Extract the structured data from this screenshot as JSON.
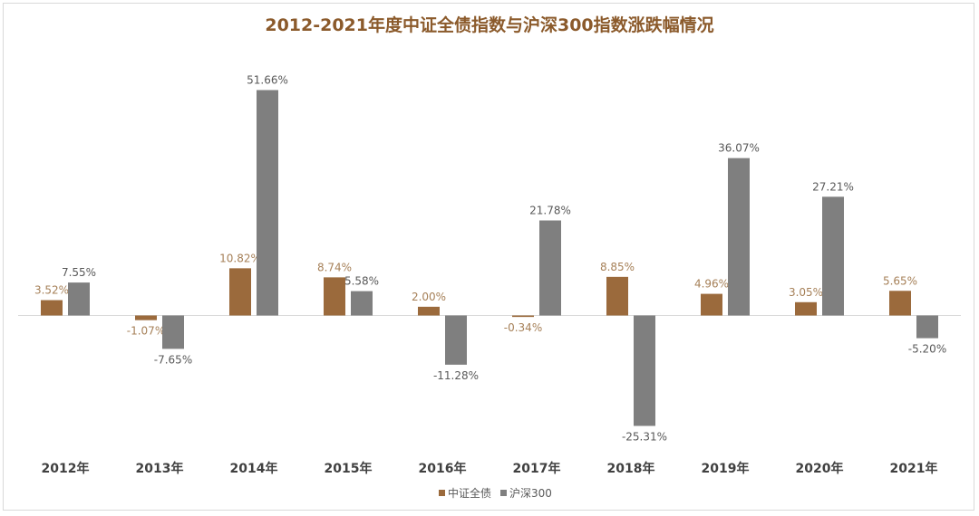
{
  "chart_data": {
    "type": "bar",
    "title": "2012-2021年度中证全债指数与沪深300指数涨跌幅情况",
    "xlabel": "",
    "ylabel": "",
    "categories": [
      "2012年",
      "2013年",
      "2014年",
      "2015年",
      "2016年",
      "2017年",
      "2018年",
      "2019年",
      "2020年",
      "2021年"
    ],
    "series": [
      {
        "name": "中证全债",
        "color": "#9b6a3c",
        "label_color": "#a68058",
        "values": [
          3.52,
          -1.07,
          10.82,
          8.74,
          2.0,
          -0.34,
          8.85,
          4.96,
          3.05,
          5.65
        ],
        "labels": [
          "3.52%",
          "-1.07%",
          "10.82%",
          "8.74%",
          "2.00%",
          "-0.34%",
          "8.85%",
          "4.96%",
          "3.05%",
          "5.65%"
        ]
      },
      {
        "name": "沪深300",
        "color": "#7f7f7f",
        "label_color": "#595959",
        "values": [
          7.55,
          -7.65,
          51.66,
          5.58,
          -11.28,
          21.78,
          -25.31,
          36.07,
          27.21,
          -5.2
        ],
        "labels": [
          "7.55%",
          "-7.65%",
          "51.66%",
          "5.58%",
          "-11.28%",
          "21.78%",
          "-25.31%",
          "36.07%",
          "27.21%",
          "-5.20%"
        ]
      }
    ],
    "ylim": [
      -30,
      55
    ],
    "grid": false,
    "legend": "bottom-center",
    "title_color": "#8b5a2b"
  }
}
